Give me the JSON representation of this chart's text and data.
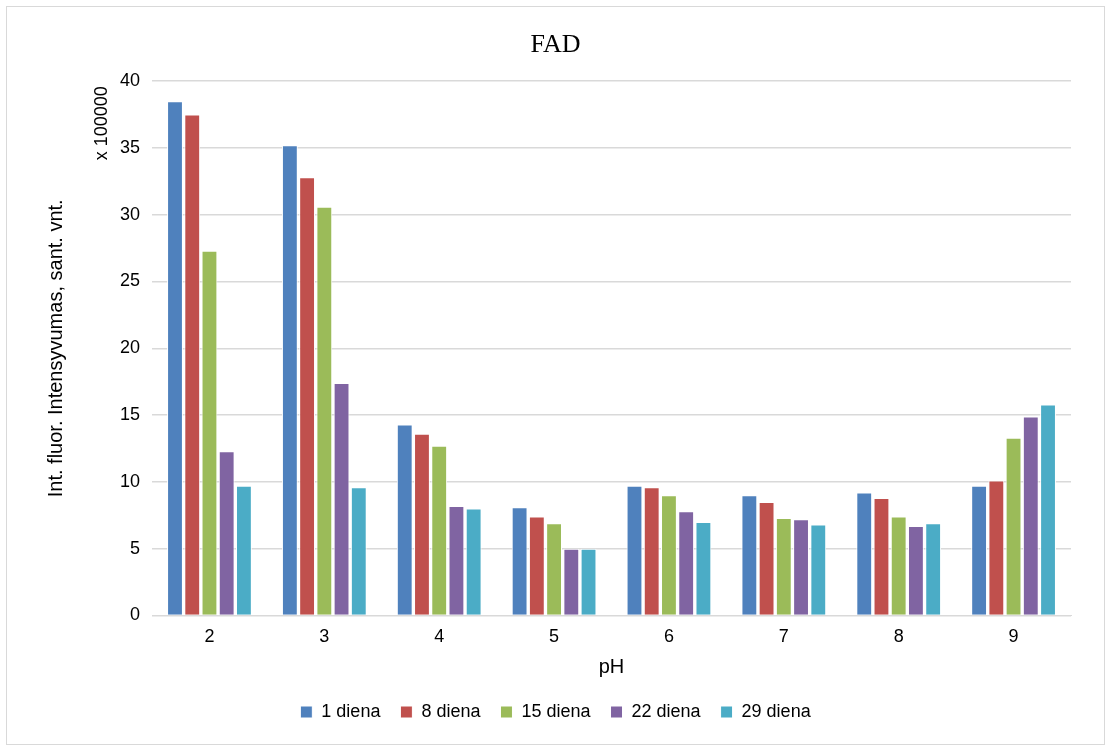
{
  "chart_data": {
    "type": "bar",
    "title": "FAD",
    "xlabel": "pH",
    "ylabel": "Int. fluor. Intensyvumas, sant. vnt.",
    "annotations": [
      "x 100000"
    ],
    "categories": [
      "2",
      "3",
      "4",
      "5",
      "6",
      "7",
      "8",
      "9"
    ],
    "series": [
      {
        "name": "1 diena",
        "color": "#4f81bd",
        "values": [
          38.5,
          35.2,
          14.3,
          8.1,
          9.7,
          9.0,
          9.2,
          9.7
        ]
      },
      {
        "name": "8 diena",
        "color": "#c0504d",
        "values": [
          37.5,
          32.8,
          13.6,
          7.4,
          9.6,
          8.5,
          8.8,
          10.1
        ]
      },
      {
        "name": "15 diena",
        "color": "#9bbb59",
        "values": [
          27.3,
          30.6,
          12.7,
          6.9,
          9.0,
          7.3,
          7.4,
          13.3
        ]
      },
      {
        "name": "22 diena",
        "color": "#8064a2",
        "values": [
          12.3,
          17.4,
          8.2,
          5.0,
          7.8,
          7.2,
          6.7,
          14.9
        ]
      },
      {
        "name": "29 diena",
        "color": "#4bacc6",
        "values": [
          9.7,
          9.6,
          8.0,
          5.0,
          7.0,
          6.8,
          6.9,
          15.8
        ]
      }
    ],
    "ylim": [
      0,
      40
    ],
    "yticks": [
      0,
      5,
      10,
      15,
      20,
      25,
      30,
      35,
      40
    ],
    "grid": "y",
    "legend": "bottom"
  }
}
